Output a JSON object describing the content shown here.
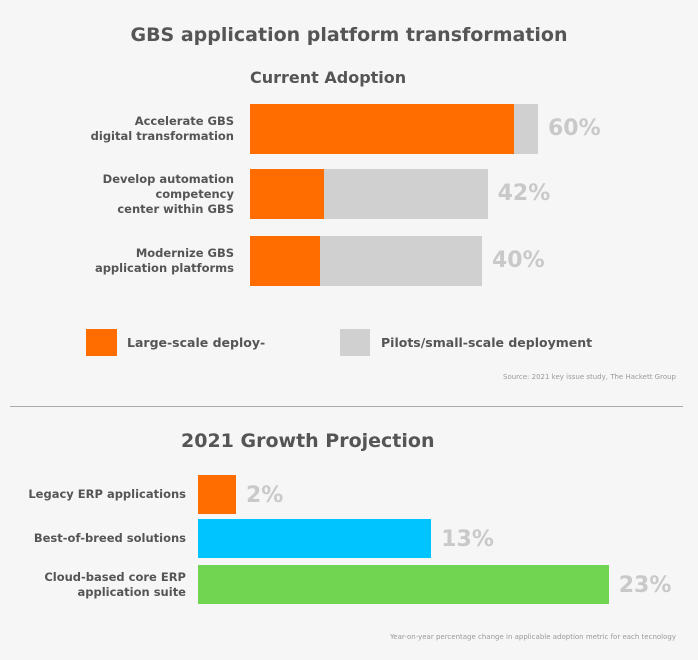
{
  "title": "GBS application platform transformation",
  "chart_data": [
    {
      "type": "bar",
      "orientation": "horizontal",
      "stacked": true,
      "title": "Current Adoption",
      "categories": [
        "Accelerate GBS digital transformation",
        "Develop automation competency center within GBS",
        "Modernize GBS application platforms"
      ],
      "category_lines": [
        [
          "Accelerate GBS",
          "digital transformation"
        ],
        [
          "Develop automation",
          "competency",
          "center within GBS"
        ],
        [
          "Modernize GBS",
          "application platforms"
        ]
      ],
      "totals": [
        60,
        42,
        40
      ],
      "total_labels": [
        "60%",
        "42%",
        "40%"
      ],
      "series": [
        {
          "name": "Large-scale deploy-",
          "values": [
            55,
            13,
            12
          ],
          "color": "#ff6d00"
        },
        {
          "name": "Pilots/small-scale deployment",
          "values": [
            5,
            29,
            28
          ],
          "color": "#d0d0d0"
        }
      ],
      "legend": "bottom",
      "source": "Source: 2021 key issue study, The Hackett Group"
    },
    {
      "type": "bar",
      "orientation": "horizontal",
      "title": "2021 Growth Projection",
      "categories": [
        "Legacy ERP applications",
        "Best-of-breed solutions",
        "Cloud-based core ERP application suite"
      ],
      "category_lines": [
        [
          "Legacy ERP applications"
        ],
        [
          "Best-of-breed solutions"
        ],
        [
          "Cloud-based core ERP",
          "application suite"
        ]
      ],
      "values": [
        2,
        13,
        23
      ],
      "value_labels": [
        "2%",
        "13%",
        "23%"
      ],
      "colors": [
        "#ff6d00",
        "#00c4ff",
        "#72d552"
      ],
      "footnote": "Year-on-year percentage change in applicable adoption metric for each tecnology"
    }
  ]
}
